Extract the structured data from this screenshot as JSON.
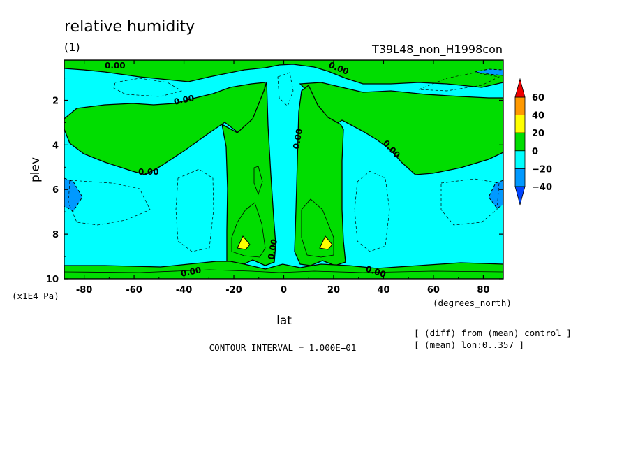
{
  "chart_data": {
    "type": "contour",
    "title": "relative humidity",
    "panel_label": "(1)",
    "run_label": "T39L48_non_H1998con",
    "xlabel": "lat",
    "x_units": "(degrees_north)",
    "ylabel": "plev",
    "y_units": "(x1E4 Pa)",
    "x_ticks": [
      -80,
      -60,
      -40,
      -20,
      0,
      20,
      40,
      60,
      80
    ],
    "y_ticks": [
      2,
      4,
      6,
      8,
      10
    ],
    "xlim": [
      -88,
      88
    ],
    "ylim": [
      0.2,
      10
    ],
    "y_inverted": true,
    "contour_interval_text": "CONTOUR INTERVAL = 1.000E+01",
    "notes": [
      "[ (diff) from (mean) control ]",
      "[ (mean) lon:0..357 ]"
    ],
    "contour_labels": [
      "0.00",
      "0.00",
      "0.00",
      "0.00",
      "0.00",
      "0.00",
      "0.00",
      "0.00",
      "0.00"
    ],
    "colorbar": {
      "levels": [
        "60",
        "40",
        "20",
        "0",
        "−20",
        "−40"
      ],
      "colors": {
        "above60": "#ee0000",
        "40to60": "#ff9900",
        "20to40": "#ffff00",
        "0to20": "#00dd00",
        "m20to0": "#00ffff",
        "m40tom20": "#0099ff",
        "belowm40": "#0044ff"
      }
    },
    "regions": {
      "base": "m20to0",
      "features": [
        {
          "name": "upper-level band (0 to 20)",
          "lat": [
            -88,
            88
          ],
          "plev": [
            0.2,
            2.5
          ],
          "level": "0to20"
        },
        {
          "name": "tropical tower south",
          "lat": [
            -25,
            -5
          ],
          "plev": [
            1.2,
            9.5
          ],
          "level": "0to20"
        },
        {
          "name": "tropical tower north",
          "lat": [
            5,
            25
          ],
          "plev": [
            1.2,
            9.5
          ],
          "level": "0to20"
        },
        {
          "name": "near-surface band",
          "lat": [
            -88,
            88
          ],
          "plev": [
            9.3,
            10
          ],
          "level": "0to20"
        },
        {
          "name": "peak south",
          "lat": -17,
          "plev": 8.3,
          "level": "20to40"
        },
        {
          "name": "peak north",
          "lat": 17,
          "plev": 8.3,
          "level": "20to40"
        },
        {
          "name": "minimum south pole",
          "lat": -85,
          "plev": 6.2,
          "level": "m40tom20"
        },
        {
          "name": "minimum north pole",
          "lat": 85,
          "plev": 6.2,
          "level": "m40tom20"
        }
      ]
    }
  }
}
